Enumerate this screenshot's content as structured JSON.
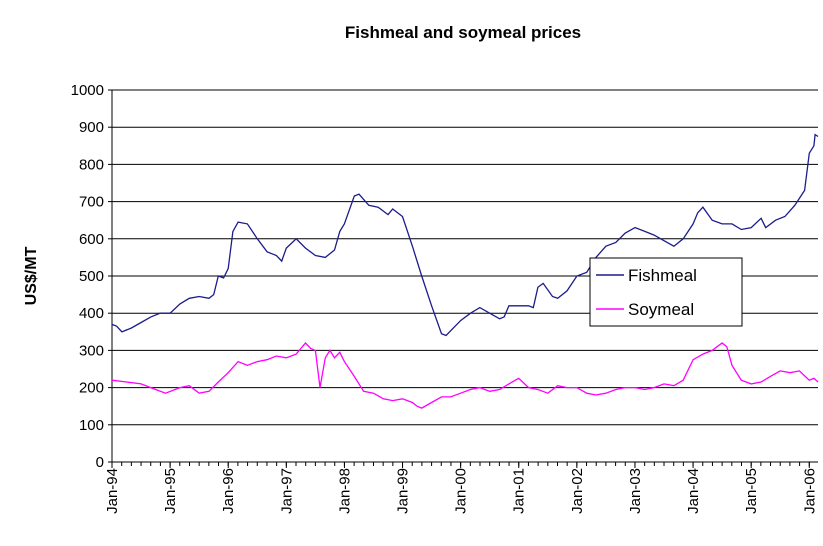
{
  "chart_data": {
    "type": "line",
    "title": "Fishmeal and soymeal prices",
    "y_label": "US$/MT",
    "xlim": [
      1994,
      2006.15
    ],
    "ylim": [
      0,
      1000
    ],
    "yticks": [
      0,
      100,
      200,
      300,
      400,
      500,
      600,
      700,
      800,
      900,
      1000
    ],
    "xticks": [
      {
        "value": 1994,
        "label": "Jan-94"
      },
      {
        "value": 1995,
        "label": "Jan-95"
      },
      {
        "value": 1996,
        "label": "Jan-96"
      },
      {
        "value": 1997,
        "label": "Jan-97"
      },
      {
        "value": 1998,
        "label": "Jan-98"
      },
      {
        "value": 1999,
        "label": "Jan-99"
      },
      {
        "value": 2000,
        "label": "Jan-00"
      },
      {
        "value": 2001,
        "label": "Jan-01"
      },
      {
        "value": 2002,
        "label": "Jan-02"
      },
      {
        "value": 2003,
        "label": "Jan-03"
      },
      {
        "value": 2004,
        "label": "Jan-04"
      },
      {
        "value": 2005,
        "label": "Jan-05"
      },
      {
        "value": 2006,
        "label": "Jan-06"
      }
    ],
    "grid": true,
    "legend": "right",
    "series": [
      {
        "name": "Fishmeal",
        "color": "#1c1c8c",
        "x": [
          1994,
          1994.08,
          1994.17,
          1994.33,
          1994.5,
          1994.67,
          1994.83,
          1995,
          1995.17,
          1995.33,
          1995.5,
          1995.67,
          1995.75,
          1995.83,
          1995.92,
          1996,
          1996.08,
          1996.17,
          1996.33,
          1996.5,
          1996.67,
          1996.83,
          1996.92,
          1997,
          1997.17,
          1997.33,
          1997.5,
          1997.67,
          1997.83,
          1997.92,
          1998,
          1998.17,
          1998.25,
          1998.42,
          1998.58,
          1998.75,
          1998.83,
          1999,
          1999.17,
          1999.33,
          1999.5,
          1999.67,
          1999.75,
          2000,
          2000.17,
          2000.33,
          2000.5,
          2000.67,
          2000.75,
          2000.83,
          2001,
          2001.17,
          2001.25,
          2001.33,
          2001.42,
          2001.58,
          2001.67,
          2001.83,
          2002,
          2002.17,
          2002.33,
          2002.5,
          2002.67,
          2002.83,
          2003,
          2003.17,
          2003.33,
          2003.5,
          2003.67,
          2003.83,
          2004,
          2004.08,
          2004.17,
          2004.33,
          2004.5,
          2004.67,
          2004.83,
          2005,
          2005.17,
          2005.25,
          2005.42,
          2005.58,
          2005.75,
          2005.92,
          2006,
          2006.08,
          2006.1,
          2006.15
        ],
        "values": [
          370,
          365,
          350,
          360,
          375,
          390,
          400,
          400,
          425,
          440,
          445,
          440,
          450,
          500,
          495,
          520,
          620,
          645,
          640,
          600,
          565,
          555,
          540,
          575,
          600,
          575,
          555,
          550,
          570,
          620,
          640,
          715,
          720,
          690,
          685,
          665,
          680,
          660,
          580,
          500,
          420,
          345,
          340,
          380,
          400,
          415,
          400,
          385,
          390,
          420,
          420,
          420,
          415,
          470,
          480,
          445,
          440,
          460,
          500,
          510,
          550,
          580,
          590,
          615,
          630,
          620,
          610,
          595,
          580,
          600,
          640,
          670,
          685,
          650,
          640,
          640,
          625,
          630,
          655,
          630,
          650,
          660,
          690,
          730,
          830,
          850,
          880,
          875
        ]
      },
      {
        "name": "Soymeal",
        "color": "#ff00ff",
        "x": [
          1994,
          1994.25,
          1994.5,
          1994.75,
          1994.92,
          1995.17,
          1995.33,
          1995.5,
          1995.67,
          1995.83,
          1996,
          1996.17,
          1996.33,
          1996.5,
          1996.67,
          1996.83,
          1997,
          1997.17,
          1997.33,
          1997.42,
          1997.5,
          1997.58,
          1997.67,
          1997.75,
          1997.83,
          1997.92,
          1998,
          1998.17,
          1998.33,
          1998.5,
          1998.67,
          1998.83,
          1999,
          1999.17,
          1999.25,
          1999.33,
          1999.5,
          1999.67,
          1999.83,
          2000,
          2000.17,
          2000.33,
          2000.5,
          2000.67,
          2000.83,
          2001,
          2001.17,
          2001.33,
          2001.5,
          2001.67,
          2001.83,
          2002,
          2002.17,
          2002.33,
          2002.5,
          2002.67,
          2002.83,
          2003,
          2003.17,
          2003.33,
          2003.5,
          2003.67,
          2003.83,
          2004,
          2004.17,
          2004.33,
          2004.5,
          2004.58,
          2004.67,
          2004.83,
          2005,
          2005.17,
          2005.33,
          2005.5,
          2005.67,
          2005.83,
          2006,
          2006.08,
          2006.15
        ],
        "values": [
          220,
          215,
          210,
          195,
          185,
          200,
          205,
          185,
          190,
          215,
          240,
          270,
          260,
          270,
          275,
          285,
          280,
          290,
          320,
          305,
          300,
          200,
          280,
          300,
          280,
          295,
          270,
          230,
          190,
          185,
          170,
          165,
          170,
          160,
          150,
          145,
          160,
          175,
          175,
          185,
          195,
          200,
          190,
          195,
          210,
          225,
          200,
          195,
          185,
          205,
          200,
          200,
          185,
          180,
          185,
          195,
          200,
          200,
          195,
          200,
          210,
          205,
          220,
          275,
          290,
          300,
          320,
          310,
          260,
          220,
          210,
          215,
          230,
          245,
          240,
          245,
          220,
          225,
          215
        ]
      }
    ]
  }
}
